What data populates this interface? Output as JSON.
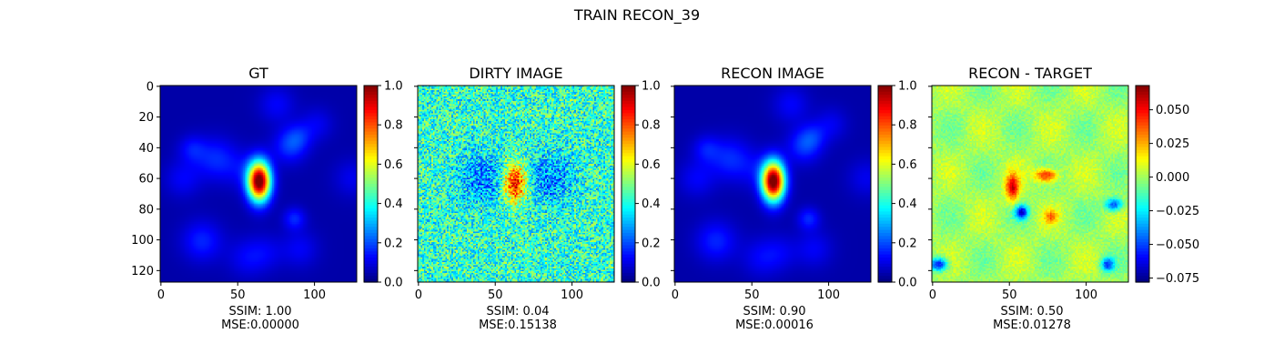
{
  "figure_title": "TRAIN RECON_39",
  "colormap": "jet",
  "chart_data": [
    {
      "type": "heatmap",
      "title": "GT",
      "caption": [
        "SSIM: 1.00",
        "MSE:0.00000"
      ],
      "grid_size": 128,
      "x_ticks": [
        "0",
        "50",
        "100"
      ],
      "y_ticks": [
        "0",
        "20",
        "40",
        "60",
        "80",
        "100",
        "120"
      ],
      "colorbar": {
        "range": [
          0.0,
          1.0
        ],
        "ticks": [
          "0.0",
          "0.2",
          "0.4",
          "0.6",
          "0.8",
          "1.0"
        ]
      },
      "source": {
        "center": [
          64,
          62
        ],
        "peak": 1.0
      }
    },
    {
      "type": "heatmap",
      "title": "DIRTY IMAGE",
      "caption": [
        "SSIM: 0.04",
        "MSE:0.15138"
      ],
      "grid_size": 128,
      "x_ticks": [
        "0",
        "50",
        "100"
      ],
      "y_ticks": [],
      "colorbar": {
        "range": [
          0.0,
          1.0
        ],
        "ticks": [
          "0.0",
          "0.2",
          "0.4",
          "0.6",
          "0.8",
          "1.0"
        ]
      },
      "source": {
        "center": [
          63,
          63
        ],
        "peak": 0.9
      }
    },
    {
      "type": "heatmap",
      "title": "RECON IMAGE",
      "caption": [
        "SSIM: 0.90",
        "MSE:0.00016"
      ],
      "grid_size": 128,
      "x_ticks": [
        "0",
        "50",
        "100"
      ],
      "y_ticks": [],
      "colorbar": {
        "range": [
          0.0,
          1.0
        ],
        "ticks": [
          "0.0",
          "0.2",
          "0.4",
          "0.6",
          "0.8",
          "1.0"
        ]
      },
      "source": {
        "center": [
          64,
          62
        ],
        "peak": 1.0
      }
    },
    {
      "type": "heatmap",
      "title": "RECON - TARGET",
      "caption": [
        "SSIM: 0.50",
        "MSE:0.01278"
      ],
      "grid_size": 128,
      "x_ticks": [
        "0",
        "50",
        "100"
      ],
      "y_ticks": [],
      "colorbar": {
        "range": [
          -0.078,
          0.068
        ],
        "ticks": [
          "0.050",
          "0.025",
          "0.000",
          "−0.025",
          "−0.050",
          "−0.075"
        ]
      },
      "source": {
        "center": [
          64,
          62
        ],
        "peak": 0.06
      }
    }
  ]
}
